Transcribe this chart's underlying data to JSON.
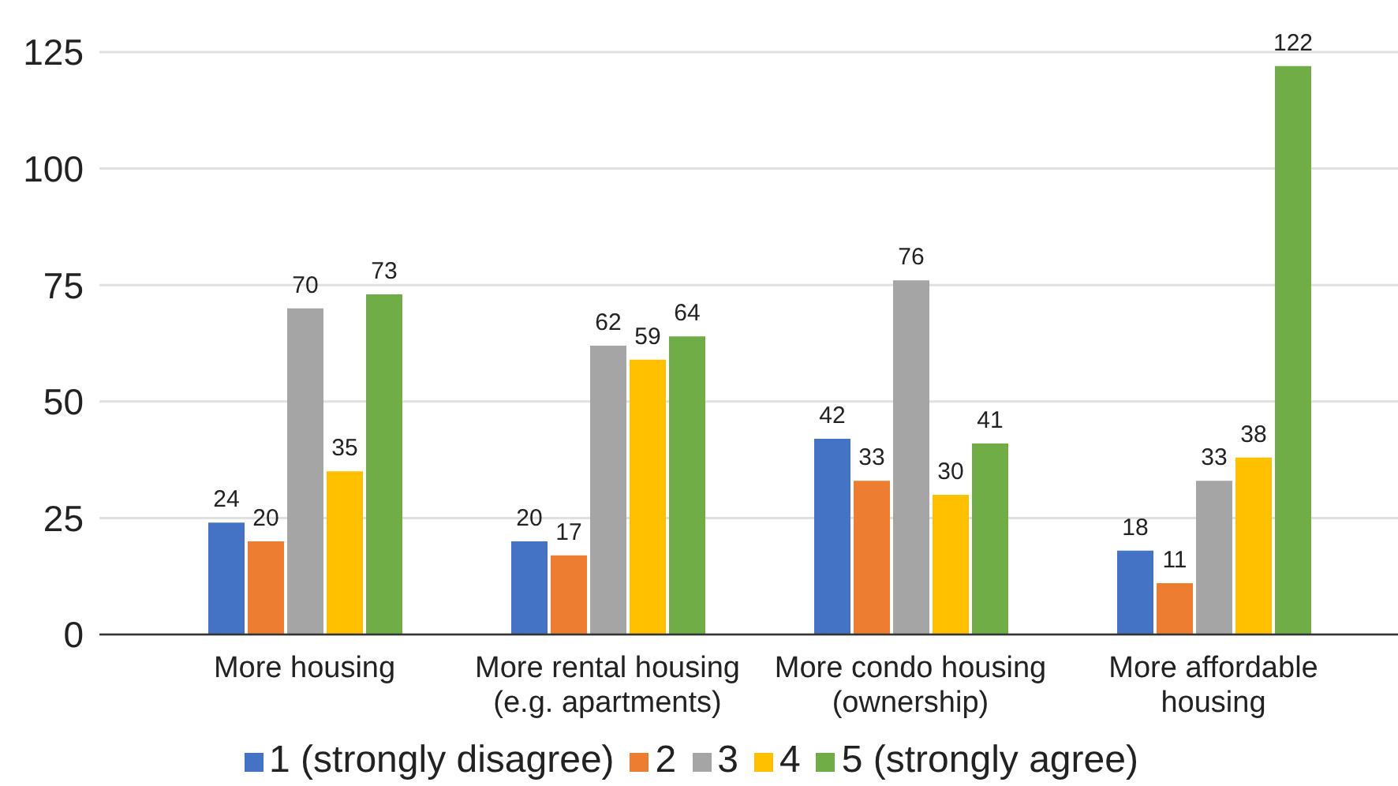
{
  "chart_data": {
    "type": "bar",
    "categories": [
      "More housing",
      "More rental housing (e.g. apartments)",
      "More condo housing (ownership)",
      "More affordable housing"
    ],
    "series": [
      {
        "name": "1 (strongly disagree)",
        "color": "#4472c4",
        "values": [
          24,
          20,
          42,
          18
        ]
      },
      {
        "name": "2",
        "color": "#ed7d31",
        "values": [
          20,
          17,
          33,
          11
        ]
      },
      {
        "name": "3",
        "color": "#a5a5a5",
        "values": [
          70,
          62,
          76,
          33
        ]
      },
      {
        "name": "4",
        "color": "#ffc000",
        "values": [
          35,
          59,
          30,
          38
        ]
      },
      {
        "name": "5 (strongly agree)",
        "color": "#70ad47",
        "values": [
          73,
          64,
          41,
          122
        ]
      }
    ],
    "ylim": [
      0,
      125
    ],
    "yticks": [
      0,
      25,
      50,
      75,
      100,
      125
    ],
    "grid": "y",
    "legend": "bottom",
    "data_labels": true
  }
}
